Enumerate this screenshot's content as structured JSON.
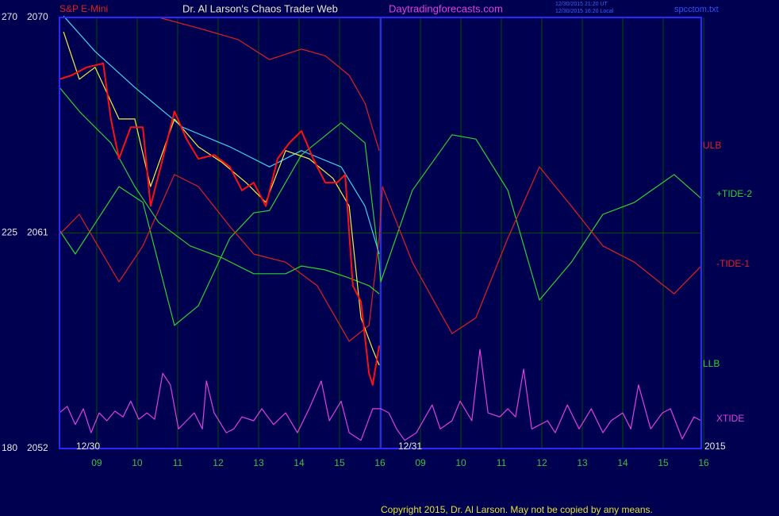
{
  "chart_data": {
    "type": "line",
    "instrument": "S&P E-Mini",
    "title": "Dr. Al Larson's Chaos Trader Web",
    "site": "Daytradingforecasts.com",
    "timestamps": [
      "12/30/2015 21:20 UT",
      "12/30/2015 16:20 Local"
    ],
    "file": "spcctom.txt",
    "copyright": "Copyright 2015, Dr. Al Larson. May not be copied by any means.",
    "annotations": [
      "12/30",
      "12/31",
      "2015"
    ],
    "xlim": [
      0.08,
      15.94
    ],
    "xticks": [
      {
        "value": 1,
        "label": "09"
      },
      {
        "value": 2,
        "label": "10"
      },
      {
        "value": 3,
        "label": "11"
      },
      {
        "value": 4,
        "label": "12"
      },
      {
        "value": 5,
        "label": "13"
      },
      {
        "value": 6,
        "label": "14"
      },
      {
        "value": 7,
        "label": "15"
      },
      {
        "value": 8,
        "label": "16"
      },
      {
        "value": 9,
        "label": "09"
      },
      {
        "value": 10,
        "label": "10"
      },
      {
        "value": 11,
        "label": "11"
      },
      {
        "value": 12,
        "label": "12"
      },
      {
        "value": 13,
        "label": "13"
      },
      {
        "value": 14,
        "label": "14"
      },
      {
        "value": 15,
        "label": "15"
      },
      {
        "value": 16,
        "label": "16"
      }
    ],
    "ylim": [
      180,
      270
    ],
    "yticks": [
      180,
      225,
      270
    ],
    "y2lim": [
      2052,
      2070
    ],
    "y2ticks": [
      2052,
      2061,
      2070
    ],
    "grid": true,
    "series": [
      {
        "name": "ULB",
        "color": "#e02020",
        "x": [
          2.53,
          3.51,
          4.49,
          5.27,
          6.06,
          6.65,
          7.24,
          7.63,
          7.98
        ],
        "values": [
          270,
          267.8,
          265.4,
          261.2,
          263.4,
          262.0,
          257.9,
          252.1,
          242.2
        ]
      },
      {
        "name": "+TIDE-2",
        "color": "#30d030",
        "x": [
          0.08,
          0.47,
          1.55,
          2.14,
          2.92,
          3.51,
          4.29,
          4.88,
          5.27,
          6.06,
          7.04,
          7.63,
          7.98,
          8.02,
          8.8,
          9.78,
          10.37,
          11.16,
          11.94,
          12.73,
          13.51,
          14.29,
          15.27,
          15.94
        ],
        "values": [
          225.6,
          220.6,
          234.7,
          231.4,
          205.7,
          209.8,
          223.9,
          229.2,
          229.7,
          241.3,
          248.0,
          243.8,
          218.9,
          214.8,
          233.9,
          245.5,
          244.6,
          233.9,
          211.0,
          218.9,
          228.9,
          231.4,
          237.2,
          232.2
        ]
      },
      {
        "name": "-TIDE-1",
        "color": "#e02020",
        "x": [
          0.08,
          0.57,
          1.55,
          2.14,
          2.92,
          3.51,
          4.29,
          4.88,
          5.67,
          6.45,
          7.24,
          7.73,
          7.98,
          8.06,
          8.8,
          9.78,
          10.37,
          11.16,
          11.94,
          12.73,
          13.51,
          14.29,
          15.27,
          15.94
        ],
        "values": [
          224.7,
          228.9,
          214.8,
          222.3,
          237.2,
          234.7,
          226.4,
          220.6,
          218.9,
          214.0,
          202.4,
          205.7,
          223.9,
          234.7,
          218.9,
          204.0,
          207.3,
          223.9,
          238.8,
          230.6,
          222.3,
          218.9,
          212.3,
          218.1
        ]
      },
      {
        "name": "LLB",
        "color": "#30d030",
        "x": [
          0.08,
          0.57,
          1.35,
          1.94,
          2.53,
          3.31,
          4.1,
          4.88,
          5.67,
          6.06,
          6.65,
          7.24,
          7.73,
          7.98
        ],
        "values": [
          255.4,
          250.4,
          243.8,
          234.7,
          227.2,
          222.3,
          219.8,
          216.5,
          216.5,
          218.1,
          217.3,
          215.6,
          214.0,
          212.3
        ]
      },
      {
        "name": "XTIDE",
        "color": "#e040e0",
        "x": [
          0.08,
          0.27,
          0.47,
          0.67,
          0.86,
          1.06,
          1.25,
          1.45,
          1.65,
          1.84,
          2.04,
          2.24,
          2.43,
          2.63,
          2.82,
          3.02,
          3.22,
          3.41,
          3.61,
          3.71,
          3.9,
          4.2,
          4.39,
          4.59,
          4.88,
          5.08,
          5.37,
          5.67,
          5.96,
          6.25,
          6.55,
          6.75,
          7.04,
          7.24,
          7.53,
          7.82,
          8.02,
          8.22,
          8.41,
          8.61,
          8.9,
          9.29,
          9.49,
          9.78,
          9.98,
          10.27,
          10.47,
          10.67,
          10.96,
          11.16,
          11.35,
          11.55,
          11.75,
          12.14,
          12.33,
          12.63,
          12.92,
          13.22,
          13.51,
          13.71,
          14.0,
          14.2,
          14.39,
          14.69,
          14.98,
          15.18,
          15.47,
          15.76,
          15.94
        ],
        "values": [
          187.45,
          188.8,
          185.0,
          188.3,
          183.3,
          187.45,
          185.8,
          187.8,
          186.6,
          189.9,
          186.1,
          187.45,
          186.1,
          195.7,
          193.3,
          184.1,
          185.8,
          187.45,
          184.1,
          194.1,
          187.45,
          183.3,
          184.1,
          186.6,
          185.8,
          188.3,
          185.0,
          187.45,
          183.3,
          188.3,
          194.1,
          185.8,
          189.9,
          183.3,
          181.7,
          188.3,
          188.3,
          187.45,
          184.1,
          181.7,
          183.3,
          189.1,
          184.1,
          185.8,
          189.9,
          185.8,
          200.7,
          187.45,
          186.6,
          188.3,
          186.6,
          196.6,
          184.1,
          185.8,
          183.3,
          189.1,
          184.1,
          188.3,
          183.3,
          185.8,
          187.45,
          184.1,
          193.3,
          184.1,
          187.45,
          188.3,
          182.0,
          186.6,
          185.8
        ]
      },
      {
        "color": "#40d0f0",
        "x": [
          0.18,
          0.96,
          1.94,
          3.12,
          4.29,
          5.27,
          6.06,
          7.04,
          7.63,
          7.98
        ],
        "values": [
          270.3,
          262.9,
          255.4,
          247.1,
          243.0,
          238.8,
          242.2,
          238.8,
          230.6,
          220.6
        ]
      },
      {
        "color": "#f0f040",
        "x": [
          0.18,
          0.57,
          0.96,
          1.55,
          1.94,
          2.33,
          2.92,
          3.51,
          4.1,
          4.69,
          5.18,
          5.67,
          6.25,
          6.84,
          7.24,
          7.53,
          7.82,
          7.98
        ],
        "values": [
          267.0,
          257.1,
          259.6,
          248.8,
          248.8,
          234.7,
          248.8,
          243.0,
          239.7,
          235.5,
          231.4,
          242.2,
          240.5,
          236.4,
          230.6,
          207.3,
          200.7,
          197.4
        ]
      },
      {
        "color": "#ff1010",
        "x": [
          0.08,
          0.37,
          0.76,
          1.16,
          1.35,
          1.55,
          1.84,
          2.14,
          2.33,
          2.63,
          2.92,
          3.22,
          3.51,
          3.9,
          4.29,
          4.59,
          4.88,
          5.18,
          5.47,
          5.76,
          6.06,
          6.35,
          6.65,
          6.94,
          7.14,
          7.33,
          7.53,
          7.73,
          7.82,
          7.98
        ],
        "values": [
          257.1,
          257.9,
          259.6,
          260.4,
          248.8,
          240.5,
          247.1,
          247.1,
          230.6,
          240.5,
          250.4,
          244.6,
          240.5,
          241.3,
          238.8,
          233.9,
          235.5,
          230.6,
          240.5,
          243.8,
          246.3,
          240.5,
          235.5,
          235.5,
          237.2,
          214.0,
          210.7,
          195.7,
          193.3,
          201.5
        ]
      }
    ]
  }
}
